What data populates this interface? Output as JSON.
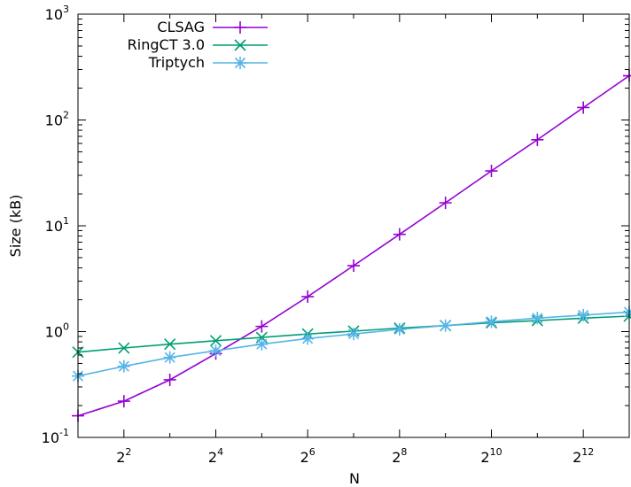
{
  "chart_data": {
    "type": "line",
    "xlabel": "N",
    "ylabel": "Size (kB)",
    "xscale": "log2",
    "yscale": "log10",
    "xlim": [
      2,
      8192
    ],
    "ylim": [
      0.1,
      1000
    ],
    "x_ticks": [
      {
        "value": 4,
        "base": "2",
        "exp": "2"
      },
      {
        "value": 16,
        "base": "2",
        "exp": "4"
      },
      {
        "value": 64,
        "base": "2",
        "exp": "6"
      },
      {
        "value": 256,
        "base": "2",
        "exp": "8"
      },
      {
        "value": 1024,
        "base": "2",
        "exp": "10"
      },
      {
        "value": 4096,
        "base": "2",
        "exp": "12"
      }
    ],
    "y_ticks": [
      {
        "value": 0.1,
        "base": "10",
        "exp": "-1"
      },
      {
        "value": 1,
        "base": "10",
        "exp": "0"
      },
      {
        "value": 10,
        "base": "10",
        "exp": "1"
      },
      {
        "value": 100,
        "base": "10",
        "exp": "2"
      },
      {
        "value": 1000,
        "base": "10",
        "exp": "3"
      }
    ],
    "legend_position": "top-left",
    "grid": false,
    "x": [
      2,
      4,
      8,
      16,
      32,
      64,
      128,
      256,
      512,
      1024,
      2048,
      4096,
      8192
    ],
    "series": [
      {
        "name": "CLSAG",
        "color": "#9400d3",
        "marker": "plus",
        "values": [
          0.16,
          0.22,
          0.35,
          0.62,
          1.12,
          2.14,
          4.2,
          8.3,
          16.5,
          33,
          65,
          131,
          262
        ]
      },
      {
        "name": "RingCT 3.0",
        "color": "#009e73",
        "marker": "cross",
        "values": [
          0.64,
          0.7,
          0.76,
          0.82,
          0.88,
          0.95,
          1.01,
          1.08,
          1.14,
          1.21,
          1.27,
          1.34,
          1.4
        ]
      },
      {
        "name": "Triptych",
        "color": "#56b4e9",
        "marker": "star",
        "values": [
          0.38,
          0.47,
          0.57,
          0.66,
          0.76,
          0.86,
          0.95,
          1.05,
          1.14,
          1.24,
          1.34,
          1.43,
          1.53
        ]
      }
    ]
  }
}
